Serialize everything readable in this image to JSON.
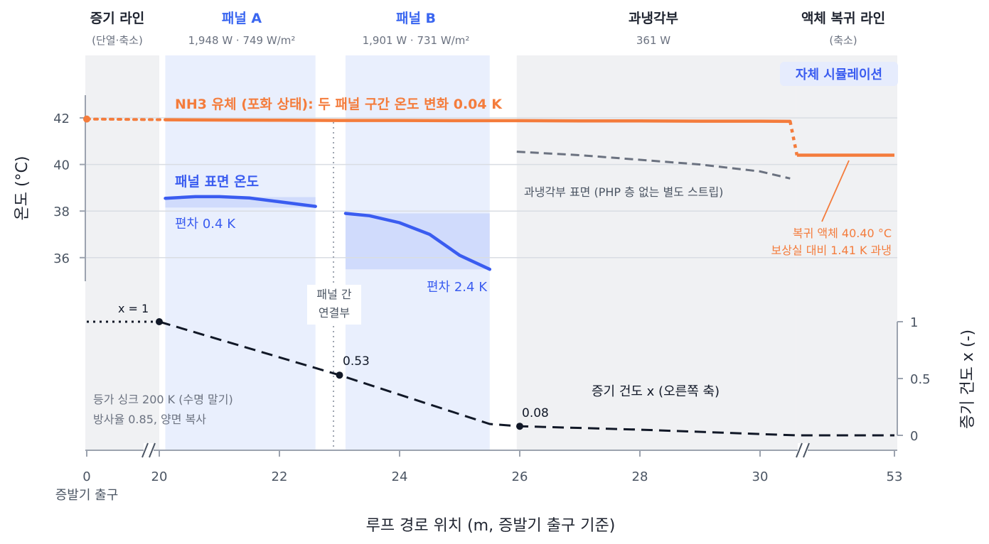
{
  "colors": {
    "fluid": "#f47c3c",
    "panel": "#3a5cf0",
    "subcooler": "#6b7280",
    "quality": "#111827",
    "panel_band": "#e9effd",
    "gray_band": "#f0f1f3"
  },
  "headers": [
    {
      "title": "증기 라인",
      "sub": "(단열·축소)"
    },
    {
      "title": "패널 A",
      "sub": "1,948 W · 749 W/m²"
    },
    {
      "title": "패널 B",
      "sub": "1,901 W · 731 W/m²"
    },
    {
      "title": "과냉각부",
      "sub": "361 W"
    },
    {
      "title": "액체 복귀 라인",
      "sub": "(축소)"
    }
  ],
  "badge": "자체 시뮬레이션",
  "annotations": {
    "fluid_label": "NH3 유체 (포화 상태): 두 패널 구간 온도 변화 0.04 K",
    "panel_label": "패널 표면 온도",
    "dev_a": "편차 0.4 K",
    "dev_b": "편차 2.4 K",
    "subcooler_label": "과냉각부 표면 (PHP 층 없는 별도 스트립)",
    "return_line1": "복귀 액체 40.40 °C",
    "return_line2": "보상실 대비 1.41 K 과냉",
    "junction_line1": "패널 간",
    "junction_line2": "연결부",
    "x_eq_1": "x = 1",
    "x_053": "0.53",
    "x_008": "0.08",
    "quality_label": "증기 건도 x (오른쪽 축)",
    "sink_line1": "등가 싱크 200 K (수명 말기)",
    "sink_line2": "방사율 0.85, 양면 복사"
  },
  "chart_data": {
    "type": "line",
    "xlabel": "루프 경로 위치 (m, 증발기 출구 기준)",
    "ylabel_left": "온도 (°C)",
    "ylabel_right": "증기 건도 x (-)",
    "x_ticks": [
      "0",
      "20",
      "22",
      "24",
      "26",
      "28",
      "30",
      "53"
    ],
    "x_tick_values": [
      0,
      20,
      22,
      24,
      26,
      28,
      30,
      53
    ],
    "x_zero_sublabel": "증발기 출구",
    "y_left_ticks": [
      36,
      38,
      40,
      42
    ],
    "y_right_ticks": [
      "0",
      "0.5",
      "1"
    ],
    "y_right_values": [
      0,
      0.5,
      1
    ],
    "axis_breaks_x": [
      20,
      30.6
    ],
    "series": [
      {
        "name": "NH3 유체 (포화 상태)",
        "points": [
          [
            20.1,
            41.92
          ],
          [
            21,
            41.91
          ],
          [
            22,
            41.9
          ],
          [
            23,
            41.89
          ],
          [
            24,
            41.89
          ],
          [
            25,
            41.88
          ],
          [
            26,
            41.88
          ],
          [
            27,
            41.87
          ],
          [
            28,
            41.87
          ],
          [
            29,
            41.86
          ],
          [
            30,
            41.86
          ],
          [
            30.5,
            41.85
          ]
        ],
        "lead_in": [
          [
            0,
            41.95
          ],
          [
            20.1,
            41.92
          ]
        ],
        "drop": [
          [
            30.5,
            41.85
          ],
          [
            30.75,
            40.4
          ]
        ],
        "return": [
          [
            30.75,
            40.4
          ],
          [
            53,
            40.4
          ]
        ]
      },
      {
        "name": "패널 표면 온도 A",
        "points": [
          [
            20.1,
            38.55
          ],
          [
            20.6,
            38.62
          ],
          [
            21,
            38.62
          ],
          [
            21.5,
            38.56
          ],
          [
            22,
            38.4
          ],
          [
            22.6,
            38.2
          ]
        ],
        "band": [
          20.1,
          22.6,
          38.15,
          38.6
        ]
      },
      {
        "name": "패널 표면 온도 B",
        "points": [
          [
            23.1,
            37.9
          ],
          [
            23.5,
            37.8
          ],
          [
            24,
            37.5
          ],
          [
            24.5,
            37.0
          ],
          [
            25,
            36.1
          ],
          [
            25.5,
            35.5
          ]
        ],
        "band": [
          23.1,
          25.5,
          35.5,
          37.9
        ]
      },
      {
        "name": "과냉각부 표면",
        "points": [
          [
            25.95,
            40.55
          ],
          [
            27,
            40.4
          ],
          [
            28,
            40.2
          ],
          [
            29,
            40.0
          ],
          [
            30,
            39.7
          ],
          [
            30.5,
            39.4
          ]
        ]
      },
      {
        "name": "증기 건도 x",
        "points": [
          [
            20,
            1.0
          ],
          [
            23,
            0.53
          ],
          [
            25.5,
            0.1
          ],
          [
            26,
            0.08
          ],
          [
            28,
            0.05
          ],
          [
            30.6,
            0.0
          ],
          [
            53,
            0.0
          ]
        ],
        "lead_in": [
          [
            0,
            1.0
          ],
          [
            20,
            1.0
          ]
        ],
        "markers": [
          [
            20,
            1.0
          ],
          [
            23,
            0.53
          ],
          [
            26,
            0.08
          ]
        ]
      }
    ],
    "regions": [
      {
        "name": "증기 라인",
        "x": [
          0,
          20
        ]
      },
      {
        "name": "패널 A",
        "x": [
          20.1,
          22.6
        ]
      },
      {
        "name": "패널 B",
        "x": [
          23.1,
          25.5
        ]
      },
      {
        "name": "과냉각부",
        "x": [
          25.95,
          30.6
        ]
      },
      {
        "name": "액체 복귀 라인",
        "x": [
          30.6,
          53
        ]
      }
    ],
    "junction_x": 22.9
  }
}
